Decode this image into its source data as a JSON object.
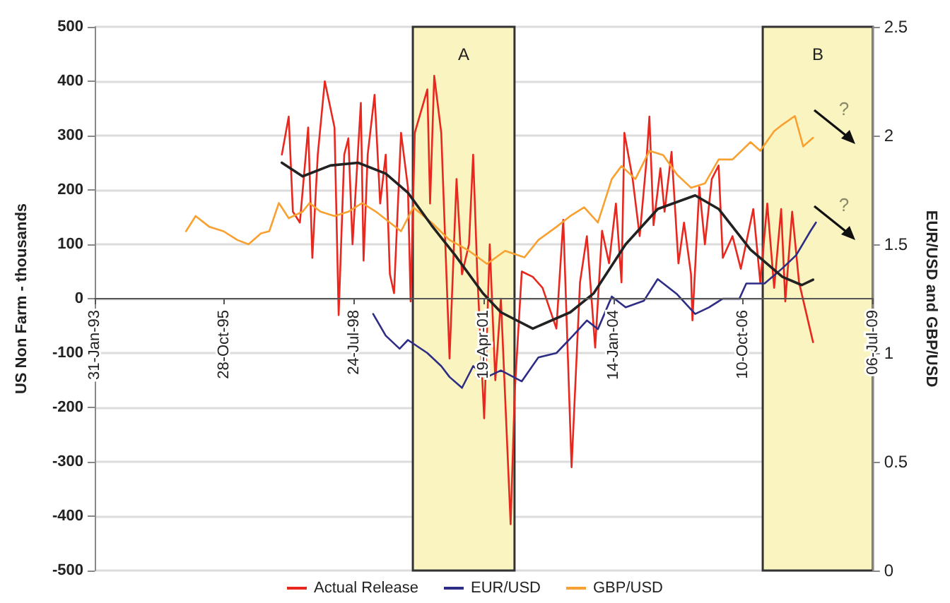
{
  "chart_data": {
    "type": "line",
    "xlabel": null,
    "ylabel": "US Non Farm - thousands",
    "y2label": "EUR/USD and GBP/USD",
    "xlim": [
      "1993-01-31",
      "2009-07-06"
    ],
    "xticks": [
      {
        "value": "1993-01-31",
        "label": "31-Jan-93"
      },
      {
        "value": "1995-10-28",
        "label": "28-Oct-95"
      },
      {
        "value": "1998-07-24",
        "label": "24-Jul-98"
      },
      {
        "value": "2001-04-19",
        "label": "19-Apr-01"
      },
      {
        "value": "2004-01-14",
        "label": "14-Jan-04"
      },
      {
        "value": "2006-10-10",
        "label": "10-Oct-06"
      },
      {
        "value": "2009-07-06",
        "label": "06-Jul-09"
      }
    ],
    "ylim": [
      -500,
      500
    ],
    "yticks": [
      -500,
      -400,
      -300,
      -200,
      -100,
      0,
      100,
      200,
      300,
      400,
      500
    ],
    "y2lim": [
      0,
      2.5
    ],
    "y2ticks": [
      0,
      0.5,
      1,
      1.5,
      2,
      2.5
    ],
    "grid": "y",
    "legend": "bottom",
    "marker": "none",
    "line_style": "solid",
    "series": [
      {
        "name": "Actual Release",
        "color": "#e8281e",
        "x": [
          "1997-01-13",
          "1997-03-07",
          "1997-04-08",
          "1997-06-01",
          "1997-08-04",
          "1997-09-05",
          "1997-10-17",
          "1997-12-10",
          "1998-02-23",
          "1998-03-27",
          "1998-05-09",
          "1998-06-10",
          "1998-07-12",
          "1998-09-14",
          "1998-10-05",
          "1998-11-06",
          "1998-12-29",
          "1999-02-10",
          "1999-03-25",
          "1999-04-26",
          "1999-05-28",
          "1999-07-21",
          "1999-09-12",
          "1999-10-03",
          "1999-11-04",
          "2000-02-09",
          "2000-03-01",
          "2000-04-02",
          "2000-05-26",
          "2000-07-29",
          "2000-09-21",
          "2000-11-02",
          "2000-12-26",
          "2001-01-27",
          "2001-02-28",
          "2001-04-22",
          "2001-06-04",
          "2001-07-17",
          "2001-08-29",
          "2001-11-12",
          "2001-12-14",
          "2002-02-06",
          "2002-05-02",
          "2002-07-16",
          "2002-10-31",
          "2002-12-23",
          "2003-02-25",
          "2003-05-01",
          "2003-06-23",
          "2003-08-26",
          "2003-10-18",
          "2003-12-11",
          "2004-02-02",
          "2004-03-16",
          "2004-04-07",
          "2004-06-10",
          "2004-08-03",
          "2004-09-25",
          "2004-10-17",
          "2004-11-18",
          "2005-01-10",
          "2005-02-11",
          "2005-04-06",
          "2005-05-29",
          "2005-07-11",
          "2005-09-03",
          "2005-09-14",
          "2005-11-06",
          "2005-12-19",
          "2006-02-10",
          "2006-04-04",
          "2006-05-06",
          "2006-07-20",
          "2006-09-22",
          "2006-12-27",
          "2007-02-19",
          "2007-04-14",
          "2007-06-06",
          "2007-07-30",
          "2007-08-31",
          "2007-10-23",
          "2007-12-15",
          "2008-04-01"
        ],
        "values": [
          265,
          335,
          160,
          140,
          315,
          75,
          265,
          400,
          315,
          -30,
          265,
          295,
          100,
          360,
          70,
          265,
          375,
          175,
          265,
          45,
          10,
          305,
          205,
          -5,
          305,
          385,
          175,
          410,
          305,
          -110,
          220,
          45,
          100,
          265,
          45,
          -220,
          100,
          -150,
          0,
          -415,
          -170,
          50,
          40,
          20,
          -55,
          145,
          -310,
          30,
          115,
          -90,
          125,
          65,
          175,
          30,
          305,
          220,
          115,
          255,
          335,
          135,
          240,
          160,
          270,
          65,
          140,
          45,
          -40,
          205,
          100,
          220,
          245,
          75,
          115,
          55,
          165,
          30,
          175,
          20,
          165,
          -5,
          160,
          30,
          -80
        ]
      },
      {
        "name": "EUR/USD",
        "color": "#2e2d85",
        "axis": "y2",
        "x": [
          "1998-12-18",
          "1999-03-25",
          "1999-07-10",
          "1999-09-12",
          "2000-02-09",
          "2000-05-26",
          "2000-07-29",
          "2000-11-02",
          "2001-01-27",
          "2001-05-14",
          "2001-08-29",
          "2002-02-06",
          "2002-06-14",
          "2002-10-31",
          "2003-03-08",
          "2003-06-23",
          "2003-09-16",
          "2004-01-01",
          "2004-04-17",
          "2004-09-04",
          "2004-12-20",
          "2005-05-19",
          "2005-10-05",
          "2006-01-19",
          "2006-05-06",
          "2006-09-11",
          "2006-11-03",
          "2007-03-24",
          "2007-08-09",
          "2007-11-23",
          "2008-03-11",
          "2008-04-23"
        ],
        "values": [
          1.18,
          1.08,
          1.02,
          1.06,
          1.0,
          0.94,
          0.89,
          0.84,
          0.94,
          0.89,
          0.92,
          0.87,
          0.98,
          1.0,
          1.08,
          1.15,
          1.11,
          1.26,
          1.21,
          1.24,
          1.34,
          1.27,
          1.18,
          1.21,
          1.25,
          1.25,
          1.32,
          1.32,
          1.39,
          1.45,
          1.56,
          1.6
        ]
      },
      {
        "name": "GBP/USD",
        "color": "#f8a030",
        "axis": "y2",
        "x": [
          "1995-01-05",
          "1995-03-20",
          "1995-07-05",
          "1995-10-21",
          "1996-02-05",
          "1996-05-01",
          "1996-08-05",
          "1996-10-08",
          "1996-12-21",
          "1997-03-07",
          "1997-06-22",
          "1997-08-14",
          "1997-11-07",
          "1998-02-23",
          "1998-06-10",
          "1998-09-24",
          "1999-01-09",
          "1999-04-26",
          "1999-07-21",
          "1999-10-24",
          "2000-03-12",
          "2000-07-29",
          "2000-12-26",
          "2001-05-14",
          "2001-09-30",
          "2002-02-27",
          "2002-06-14",
          "2002-10-31",
          "2003-02-15",
          "2003-06-02",
          "2003-09-16",
          "2004-01-01",
          "2004-03-16",
          "2004-07-01",
          "2004-10-17",
          "2005-02-01",
          "2005-05-19",
          "2005-09-03",
          "2005-12-19",
          "2006-04-04",
          "2006-07-20",
          "2006-12-06",
          "2007-02-19",
          "2007-06-06",
          "2007-08-09",
          "2007-11-13",
          "2008-01-16",
          "2008-04-01"
        ],
        "values": [
          1.56,
          1.63,
          1.58,
          1.56,
          1.52,
          1.5,
          1.55,
          1.56,
          1.69,
          1.62,
          1.65,
          1.69,
          1.65,
          1.63,
          1.65,
          1.69,
          1.65,
          1.6,
          1.56,
          1.67,
          1.6,
          1.52,
          1.47,
          1.41,
          1.47,
          1.44,
          1.52,
          1.58,
          1.63,
          1.67,
          1.6,
          1.8,
          1.86,
          1.8,
          1.93,
          1.91,
          1.82,
          1.76,
          1.78,
          1.89,
          1.89,
          1.97,
          1.93,
          2.02,
          2.05,
          2.09,
          1.95,
          1.99
        ]
      },
      {
        "type": "line",
        "color": "#222222",
        "x": [
          "1997-01-13",
          "1997-06-22",
          "1998-01-22",
          "1998-08-24",
          "1999-03-25",
          "1999-09-12",
          "2000-03-12",
          "2000-09-10",
          "2001-04-12",
          "2001-08-29",
          "2002-05-02",
          "2003-02-15",
          "2003-08-15",
          "2004-04-17",
          "2004-12-20",
          "2005-10-05",
          "2006-04-04",
          "2006-12-06",
          "2007-08-09",
          "2008-01-05",
          "2008-04-01"
        ],
        "values": [
          250,
          225,
          245,
          250,
          230,
          195,
          135,
          80,
          10,
          -25,
          -55,
          -25,
          10,
          100,
          165,
          190,
          165,
          90,
          40,
          25,
          35
        ]
      }
    ],
    "bands": [
      {
        "axis": "x",
        "from": "1999-10-20",
        "to": "2001-12-12",
        "label": "A",
        "color": "#faf4c0"
      },
      {
        "axis": "x",
        "from": "2007-03-10",
        "to": "2009-07-06",
        "label": "B",
        "color": "#faf4c0"
      }
    ],
    "annotations": [
      "?",
      "?"
    ]
  }
}
